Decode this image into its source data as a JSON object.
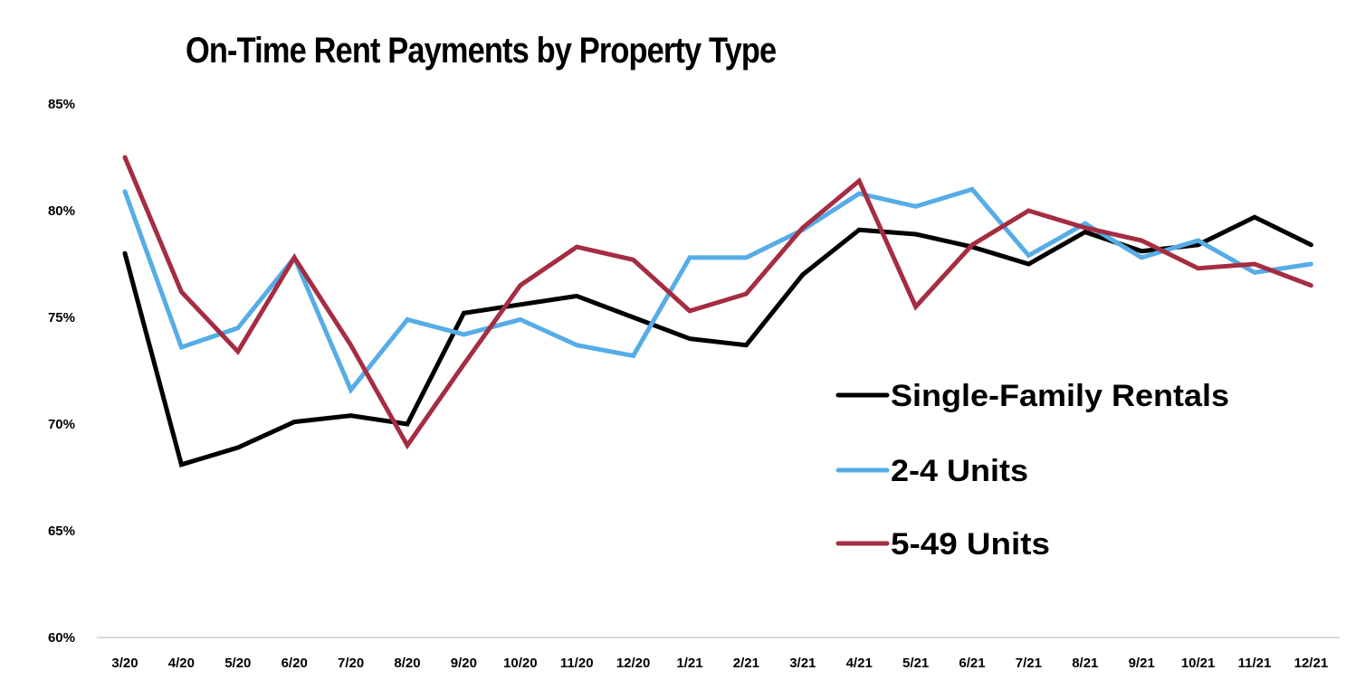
{
  "chart_data": {
    "type": "line",
    "title": "On-Time Rent Payments by Property Type",
    "xlabel": "",
    "ylabel": "",
    "ylim": [
      60,
      85
    ],
    "yticks": [
      "60%",
      "65%",
      "70%",
      "75%",
      "80%",
      "85%"
    ],
    "grid": false,
    "legend_position": "right-center",
    "categories": [
      "3/20",
      "4/20",
      "5/20",
      "6/20",
      "7/20",
      "8/20",
      "9/20",
      "10/20",
      "11/20",
      "12/20",
      "1/21",
      "2/21",
      "3/21",
      "4/21",
      "5/21",
      "6/21",
      "7/21",
      "8/21",
      "9/21",
      "10/21",
      "11/21",
      "12/21"
    ],
    "series": [
      {
        "name": "Single-Family Rentals",
        "color": "#000000",
        "values": [
          78.0,
          68.1,
          68.9,
          70.1,
          70.4,
          70.0,
          75.2,
          75.6,
          76.0,
          75.0,
          74.0,
          73.7,
          77.0,
          79.1,
          78.9,
          78.3,
          77.5,
          79.0,
          78.1,
          78.4,
          79.7,
          78.4
        ]
      },
      {
        "name": "2-4 Units",
        "color": "#56ace6",
        "values": [
          80.9,
          73.6,
          74.5,
          77.8,
          71.6,
          74.9,
          74.2,
          74.9,
          73.7,
          73.2,
          77.8,
          77.8,
          79.1,
          80.8,
          80.2,
          81.0,
          77.9,
          79.4,
          77.8,
          78.6,
          77.1,
          77.5
        ]
      },
      {
        "name": "5-49 Units",
        "color": "#a52d42",
        "values": [
          82.5,
          76.2,
          73.4,
          77.8,
          73.7,
          69.0,
          72.8,
          76.5,
          78.3,
          77.7,
          75.3,
          76.1,
          79.2,
          81.4,
          75.5,
          78.4,
          80.0,
          79.2,
          78.6,
          77.3,
          77.5,
          76.5
        ]
      }
    ]
  }
}
